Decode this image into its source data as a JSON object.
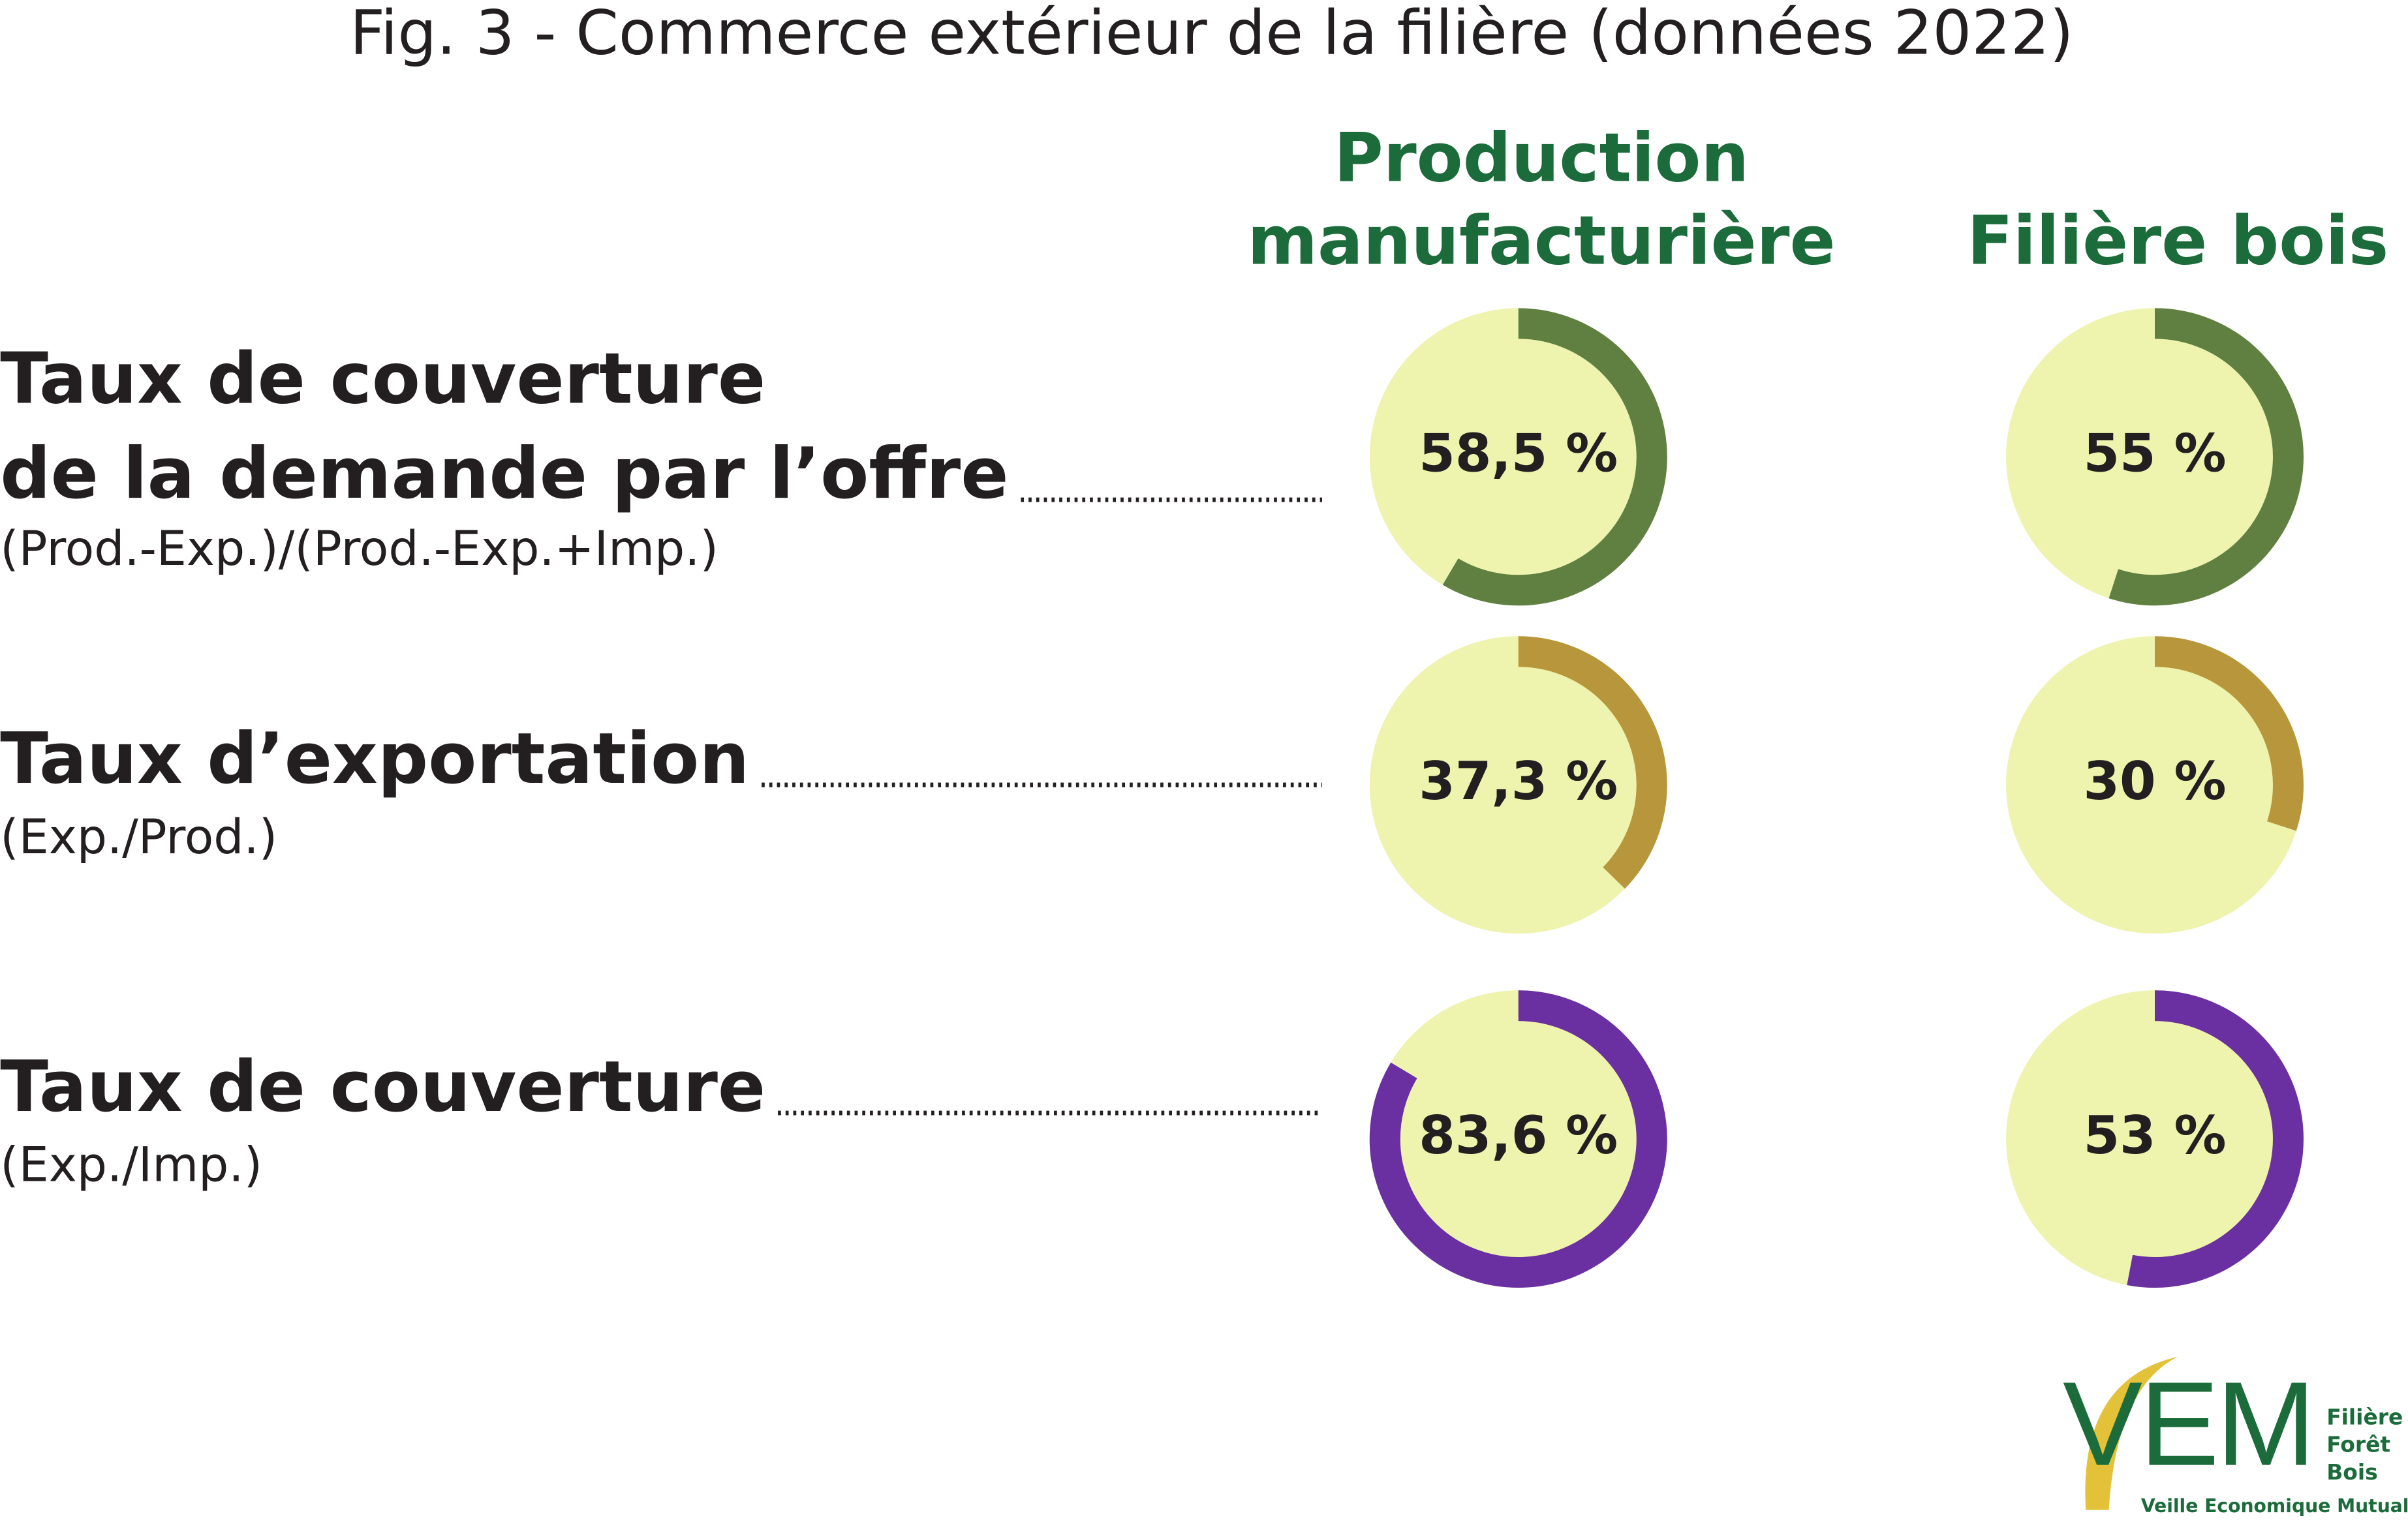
{
  "chart_data": {
    "type": "donut",
    "title": "Fig. 3 - Commerce extérieur de la filière (données 2022)",
    "columns": [
      [
        "Production",
        "manufacturière"
      ],
      [
        "Filière bois"
      ]
    ],
    "ylim": [
      0,
      100
    ],
    "rows": [
      {
        "label": [
          "Taux de couverture",
          "de la demande par l’offre"
        ],
        "formula": "(Prod.-Exp.)/(Prod.-Exp.+Imp.)",
        "color": "#5f8040",
        "values": [
          58.5,
          55
        ],
        "value_labels": [
          "58,5 %",
          "55 %"
        ]
      },
      {
        "label": [
          "Taux d’exportation"
        ],
        "formula": "(Exp./Prod.)",
        "color": "#b8963c",
        "values": [
          37.3,
          30
        ],
        "value_labels": [
          "37,3 %",
          "30 %"
        ]
      },
      {
        "label": [
          "Taux de couverture"
        ],
        "formula": "(Exp./Imp.)",
        "color": "#6a2fa0",
        "values": [
          83.6,
          53
        ],
        "value_labels": [
          "83,6 %",
          "53 %"
        ]
      }
    ]
  },
  "logo": {
    "mark": "VEM",
    "lines": [
      "Filière",
      "Forêt",
      "Bois"
    ],
    "tagline": "Veille Economique Mutualisée"
  }
}
